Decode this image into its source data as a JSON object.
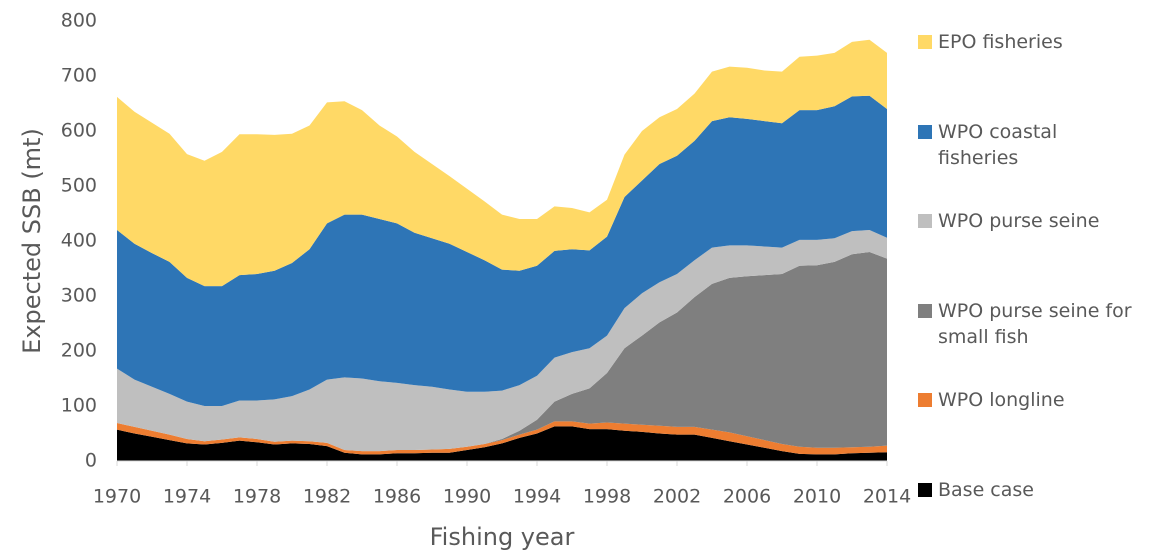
{
  "chart_data": {
    "type": "stacked_area",
    "x_label": "Fishing year",
    "y_label": "Expected SSB (mt)",
    "x": [
      1970,
      1971,
      1972,
      1973,
      1974,
      1975,
      1976,
      1977,
      1978,
      1979,
      1980,
      1981,
      1982,
      1983,
      1984,
      1985,
      1986,
      1987,
      1988,
      1989,
      1990,
      1991,
      1992,
      1993,
      1994,
      1995,
      1996,
      1997,
      1998,
      1999,
      2000,
      2001,
      2002,
      2003,
      2004,
      2005,
      2006,
      2007,
      2008,
      2009,
      2010,
      2011,
      2012,
      2013,
      2014
    ],
    "xlim": [
      1970,
      2014
    ],
    "xticks": [
      1970,
      1974,
      1978,
      1982,
      1986,
      1990,
      1994,
      1998,
      2002,
      2006,
      2010,
      2014
    ],
    "ylim": [
      0,
      800
    ],
    "yticks": [
      0,
      100,
      200,
      300,
      400,
      500,
      600,
      700,
      800
    ],
    "grid": false,
    "legend": "right",
    "series": [
      {
        "name": "Base case",
        "color": "#000000",
        "values": [
          57,
          50,
          44,
          38,
          32,
          30,
          33,
          37,
          34,
          30,
          32,
          31,
          27,
          15,
          12,
          12,
          14,
          14,
          15,
          15,
          20,
          25,
          32,
          42,
          50,
          63,
          63,
          58,
          58,
          55,
          53,
          50,
          48,
          48,
          42,
          36,
          30,
          24,
          18,
          13,
          12,
          12,
          14,
          15,
          16
        ]
      },
      {
        "name": "WPO longline",
        "color": "#ED7D31",
        "values": [
          12,
          12,
          11,
          10,
          8,
          6,
          6,
          6,
          6,
          5,
          5,
          5,
          6,
          5,
          6,
          6,
          6,
          6,
          6,
          7,
          6,
          6,
          6,
          6,
          7,
          9,
          9,
          10,
          12,
          13,
          13,
          14,
          14,
          14,
          15,
          16,
          15,
          14,
          13,
          13,
          12,
          12,
          11,
          11,
          12
        ]
      },
      {
        "name": "WPO purse seine for small fish",
        "color": "#7F7F7F",
        "values": [
          0,
          0,
          0,
          0,
          0,
          0,
          0,
          0,
          0,
          0,
          0,
          0,
          0,
          0,
          0,
          0,
          0,
          0,
          0,
          0,
          0,
          0,
          2,
          7,
          18,
          36,
          50,
          64,
          90,
          137,
          162,
          188,
          208,
          236,
          265,
          281,
          291,
          300,
          309,
          329,
          332,
          338,
          351,
          354,
          340
        ]
      },
      {
        "name": "WPO purse seine",
        "color": "#BFBFBF",
        "values": [
          99,
          86,
          80,
          74,
          68,
          64,
          61,
          67,
          70,
          77,
          81,
          94,
          115,
          132,
          132,
          127,
          122,
          118,
          114,
          108,
          100,
          95,
          88,
          83,
          80,
          80,
          76,
          73,
          68,
          73,
          77,
          73,
          70,
          67,
          66,
          59,
          56,
          52,
          48,
          47,
          46,
          43,
          42,
          40,
          38
        ]
      },
      {
        "name": "WPO coastal fisheries",
        "color": "#2E75B6",
        "values": [
          252,
          247,
          243,
          240,
          225,
          218,
          218,
          228,
          230,
          234,
          242,
          255,
          284,
          296,
          298,
          295,
          290,
          277,
          270,
          265,
          254,
          239,
          220,
          208,
          200,
          194,
          187,
          178,
          180,
          202,
          205,
          215,
          215,
          217,
          230,
          233,
          230,
          228,
          226,
          236,
          236,
          240,
          245,
          244,
          234
        ]
      },
      {
        "name": "EPO fisheries",
        "color": "#FFD966",
        "values": [
          242,
          240,
          237,
          233,
          225,
          228,
          244,
          256,
          254,
          247,
          235,
          225,
          220,
          206,
          190,
          170,
          158,
          147,
          135,
          123,
          115,
          107,
          100,
          94,
          85,
          81,
          75,
          69,
          67,
          77,
          90,
          85,
          85,
          86,
          90,
          92,
          93,
          92,
          94,
          97,
          99,
          97,
          99,
          102,
          102
        ]
      }
    ]
  }
}
